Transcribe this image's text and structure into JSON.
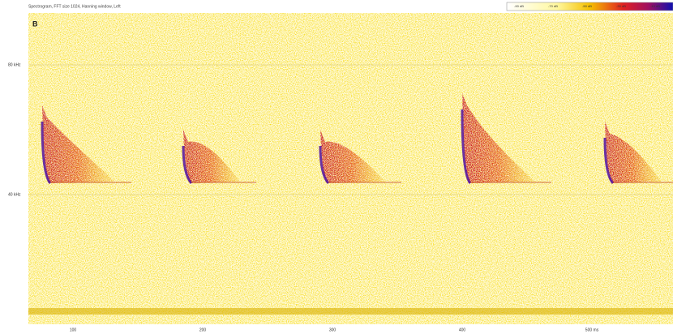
{
  "header": {
    "title": "Spectrogram, FFT size 1024, Hanning window, Left"
  },
  "panel_label": "B",
  "color_scale": {
    "labels": [
      "-90 dB",
      "-70 dB",
      "-50 dB",
      "-30 dB",
      "-10 dB"
    ]
  },
  "y_axis": {
    "labels": [
      "80 kHz",
      "40 kHz"
    ]
  },
  "x_axis": {
    "labels": [
      "100",
      "200",
      "300",
      "400",
      "500 ms"
    ]
  }
}
